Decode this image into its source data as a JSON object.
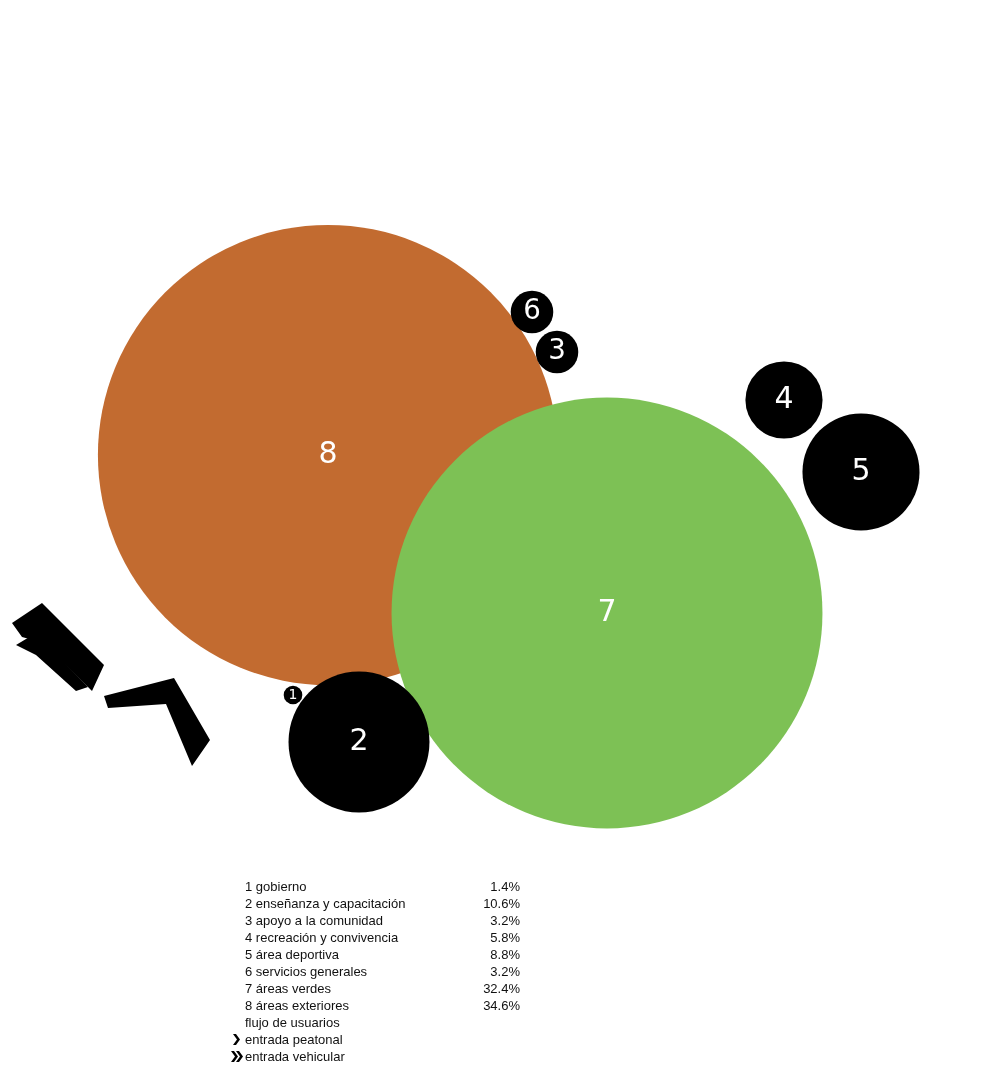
{
  "chart_data": {
    "type": "other",
    "categories": [
      "1 gobierno",
      "2 enseñanza y capacitación",
      "3 apoyo a la comunidad",
      "4 recreación y convivencia",
      "5 área deportiva",
      "6 servicios generales",
      "7 áreas verdes",
      "8 áreas exteriores"
    ],
    "values": [
      1.4,
      10.6,
      3.2,
      5.8,
      8.8,
      3.2,
      32.4,
      34.6
    ],
    "value_labels": [
      "1.4%",
      "10.6%",
      "3.2%",
      "5.8%",
      "8.8%",
      "3.2%",
      "32.4%",
      "34.6%"
    ],
    "colors": [
      "#000000",
      "#000000",
      "#000000",
      "#000000",
      "#000000",
      "#000000",
      "#7dc155",
      "#c26b30"
    ],
    "annotations": [
      "1",
      "2",
      "3",
      "4",
      "5",
      "6",
      "7",
      "8",
      "flujo de usuarios",
      "entrada peatonal",
      "entrada vehicular"
    ]
  }
}
